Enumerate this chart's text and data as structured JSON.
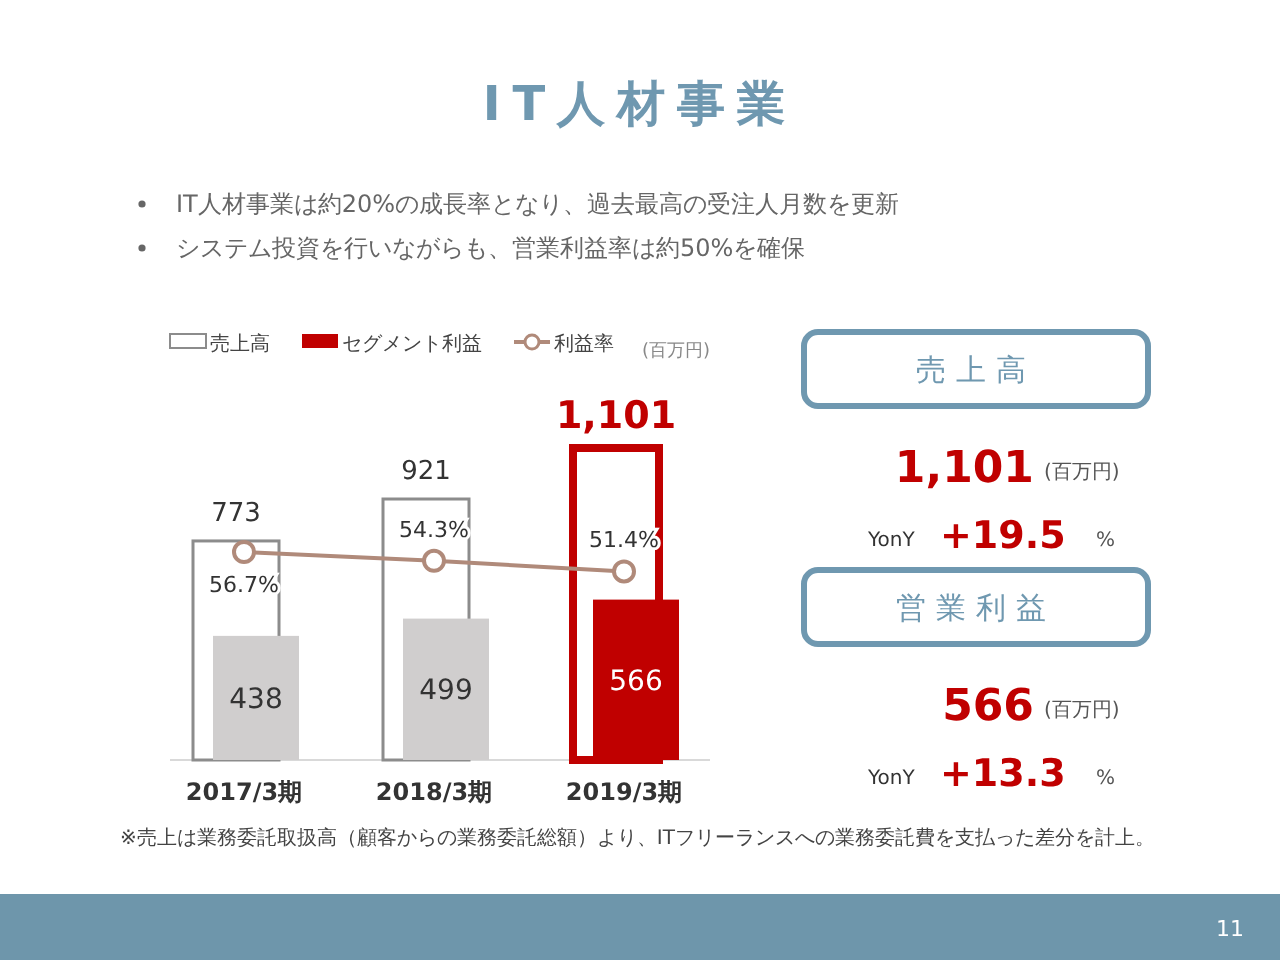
{
  "chart_data": [
    {
      "type": "bar",
      "title": "IT人材事業",
      "categories": [
        "2017/3期",
        "2018/3期",
        "2019/3期"
      ],
      "series": [
        {
          "name": "売上高",
          "type": "bar",
          "colors": [
            "#8c8c8c",
            "#8c8c8c",
            "#c00000"
          ],
          "values": [
            773,
            921,
            1101
          ],
          "value_labels": [
            "773",
            "921",
            "1,101"
          ]
        },
        {
          "name": "セグメント利益",
          "type": "bar",
          "colors": [
            "#d0cece",
            "#d0cece",
            "#c00000"
          ],
          "values": [
            438,
            499,
            566
          ]
        },
        {
          "name": "利益率",
          "type": "line",
          "axis": "y2",
          "color": "#b08a7a",
          "marker": "circle",
          "values": [
            56.7,
            54.3,
            51.4
          ],
          "value_labels": [
            "56.7%",
            "54.3%",
            "51.4%"
          ]
        }
      ],
      "data_labels": true,
      "legend": "top left",
      "annotations": [
        "IT人材事業は約20%の成長率となり、過去最高の受注人月数を更新",
        "システム投資を行いながらも、営業利益率は約50%を確保",
        "(百万円)",
        "※売上は業務委託取扱高（顧客からの業務委託総額）より、ITフリーランスへの業務委託費を支払った差分を計上。",
        "11"
      ]
    },
    {
      "type": "other",
      "annotations": [
        "売上高",
        "1,101",
        "(百万円)",
        "YonY",
        "+19.5",
        "%",
        "営業利益",
        "566",
        "(百万円)",
        "YonY",
        "+13.3",
        "%"
      ]
    }
  ]
}
